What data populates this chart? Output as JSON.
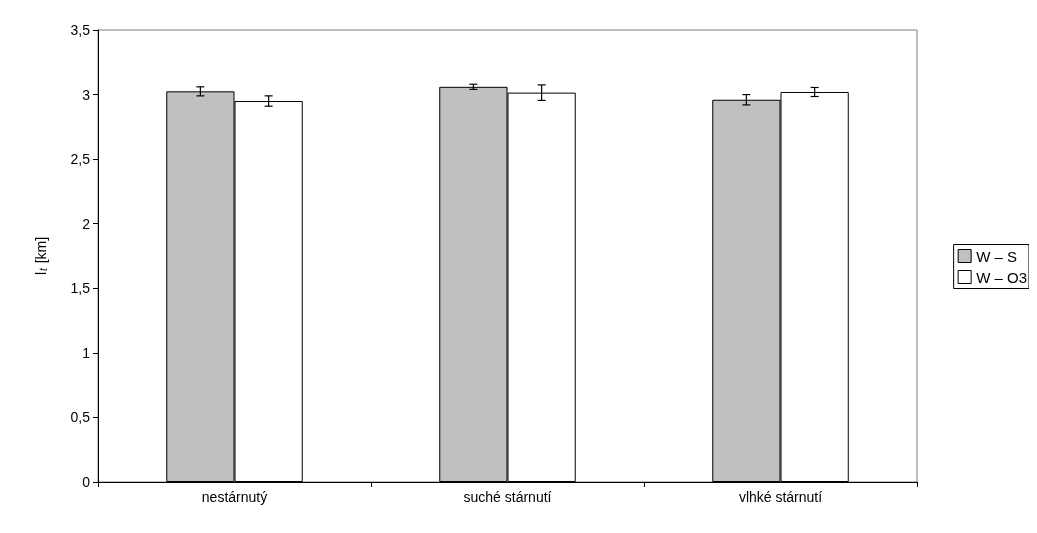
{
  "chart_data": {
    "type": "bar",
    "ylabel": "l$_{t}$ [km]",
    "categories": [
      "nestárnutý",
      "suché stárnutí",
      "vlhké stárnutí"
    ],
    "series": [
      {
        "name": "W – S",
        "color": "#c0c0c0",
        "values": [
          3.025,
          3.06,
          2.96
        ],
        "errors": [
          0.035,
          0.02,
          0.04
        ]
      },
      {
        "name": "W – O3",
        "color": "#ffffff",
        "values": [
          2.95,
          3.015,
          3.02
        ],
        "errors": [
          0.04,
          0.06,
          0.035
        ]
      }
    ],
    "ylim": [
      0,
      3.5
    ],
    "yticks": [
      0,
      {
        "value": 0.5,
        "label": "0,5"
      },
      1,
      {
        "value": 1.5,
        "label": "1,5"
      },
      2,
      {
        "value": 2.5,
        "label": "2,5"
      },
      3,
      {
        "value": 3.5,
        "label": "3,5"
      }
    ],
    "grid": false,
    "legend": "right"
  }
}
